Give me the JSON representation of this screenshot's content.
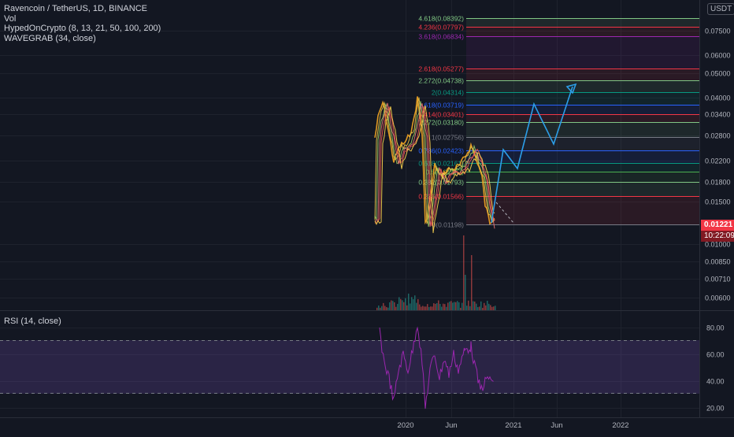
{
  "legend": {
    "symbol": "Ravencoin / TetherUS, 1D, BINANCE",
    "volume": "Vol",
    "indicator1": "HypedOnCrypto (8, 13, 21, 50, 100, 200)",
    "indicator2": "WAVEGRAB (34, close)"
  },
  "rsi_legend": "RSI (14, close)",
  "currency": "USDT",
  "last_price": "0.01221",
  "countdown": "10:22:09",
  "colors": {
    "background": "#131722",
    "grid": "#1e222d",
    "axis_text": "#b2b5be",
    "price_tag": "#f23645",
    "countdown_tag": "#801922",
    "projection": "#2c9ee8",
    "rsi_line": "#9c27b0",
    "rsi_band": "#7e57c2"
  },
  "price_axis_labels": [
    "0.07500",
    "0.06000",
    "0.05000",
    "0.04000",
    "0.03400",
    "0.02800",
    "0.02200",
    "0.01800",
    "0.01500",
    "0.01000",
    "0.00850",
    "0.00710",
    "0.00600"
  ],
  "rsi_axis_labels": [
    "80.00",
    "60.00",
    "40.00",
    "20.00"
  ],
  "time_axis_labels": [
    "2020",
    "Jun",
    "2021",
    "Jun",
    "2022"
  ],
  "fib_levels": [
    {
      "label": "4.618(0.08392)",
      "color": "#81c784"
    },
    {
      "label": "4.236(0.07797)",
      "color": "#f23645"
    },
    {
      "label": "3.618(0.06834)",
      "color": "#9c27b0"
    },
    {
      "label": "2.618(0.05277)",
      "color": "#f23645"
    },
    {
      "label": "2.272(0.04738)",
      "color": "#81c784"
    },
    {
      "label": "2(0.04314)",
      "color": "#089981"
    },
    {
      "label": "1.618(0.03719)",
      "color": "#2962ff"
    },
    {
      "label": "1.414(0.03401)",
      "color": "#f23645"
    },
    {
      "label": "1.272(0.03180)",
      "color": "#81c784"
    },
    {
      "label": "1(0.02756)",
      "color": "#787b86"
    },
    {
      "label": "0.786(0.02423)",
      "color": "#2962ff"
    },
    {
      "label": "0.618(0.02161)",
      "color": "#089981"
    },
    {
      "label": "0.5(0.01977)",
      "color": "#4caf50"
    },
    {
      "label": "0.382(0.01793)",
      "color": "#81c784"
    },
    {
      "label": "0.236(0.01566)",
      "color": "#f23645"
    },
    {
      "label": "0(0.01198)",
      "color": "#787b86"
    }
  ]
}
